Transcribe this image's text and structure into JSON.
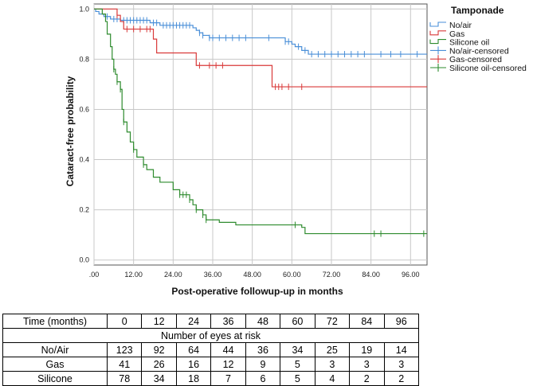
{
  "chart_data": {
    "type": "line",
    "subtype": "kaplan-meier-step",
    "xlabel": "Post-operative followup-up in months",
    "ylabel": "Cataract-free probability",
    "xlim": [
      0,
      101
    ],
    "ylim": [
      -0.02,
      1.02
    ],
    "x_ticks": [
      0,
      12,
      24,
      36,
      48,
      60,
      72,
      84,
      96
    ],
    "x_tick_labels": [
      ".00",
      "12.00",
      "24.00",
      "36.00",
      "48.00",
      "60.00",
      "72.00",
      "84.00",
      "96.00"
    ],
    "y_ticks": [
      0,
      0.2,
      0.4,
      0.6,
      0.8,
      1.0
    ],
    "y_tick_labels": [
      "0.0",
      "0.2",
      "0.4",
      "0.6",
      "0.8",
      "1.0"
    ],
    "grid": true,
    "legend_title": "Tamponade",
    "legend_position": "top-right, outside",
    "legend_entries": [
      "No/air",
      "Gas",
      "Silicone oil",
      "No/air-censored",
      "Gas-censored",
      "Silicone oil-censored"
    ],
    "series": [
      {
        "name": "No/air",
        "color": "#4a8fd8",
        "steps": [
          [
            0,
            1.0
          ],
          [
            0.5,
            0.99
          ],
          [
            1.5,
            0.98
          ],
          [
            3,
            0.97
          ],
          [
            5,
            0.96
          ],
          [
            8,
            0.955
          ],
          [
            17,
            0.945
          ],
          [
            20,
            0.935
          ],
          [
            30,
            0.925
          ],
          [
            31,
            0.915
          ],
          [
            32,
            0.905
          ],
          [
            33,
            0.895
          ],
          [
            35,
            0.885
          ],
          [
            58,
            0.87
          ],
          [
            60,
            0.86
          ],
          [
            61,
            0.85
          ],
          [
            63,
            0.835
          ],
          [
            65,
            0.82
          ],
          [
            101,
            0.82
          ]
        ],
        "censored": [
          4,
          6,
          7,
          9,
          10,
          11,
          12,
          13,
          14,
          15,
          16,
          18,
          19,
          21,
          22,
          23,
          24,
          25,
          26,
          27,
          28,
          29,
          32,
          33,
          35,
          36,
          38,
          40,
          42,
          44,
          46,
          53,
          58,
          59,
          62,
          64,
          66,
          68,
          70,
          72,
          74,
          76,
          78,
          80,
          82,
          87,
          90,
          93,
          98
        ]
      },
      {
        "name": "Gas",
        "color": "#d93a3a",
        "steps": [
          [
            0,
            1.0
          ],
          [
            7,
            0.975
          ],
          [
            8,
            0.95
          ],
          [
            9,
            0.92
          ],
          [
            18,
            0.88
          ],
          [
            19,
            0.825
          ],
          [
            31,
            0.775
          ],
          [
            54,
            0.69
          ],
          [
            101,
            0.69
          ]
        ],
        "censored": [
          7,
          10,
          12,
          14,
          16,
          17,
          32,
          35,
          37,
          39,
          55,
          56,
          57,
          59,
          63
        ]
      },
      {
        "name": "Silicone oil",
        "color": "#2e8b2e",
        "steps": [
          [
            0,
            1.0
          ],
          [
            2.5,
            0.98
          ],
          [
            3.5,
            0.95
          ],
          [
            4,
            0.9
          ],
          [
            5,
            0.85
          ],
          [
            5.5,
            0.8
          ],
          [
            6,
            0.76
          ],
          [
            6.5,
            0.74
          ],
          [
            7,
            0.71
          ],
          [
            8,
            0.68
          ],
          [
            8.5,
            0.6
          ],
          [
            9,
            0.55
          ],
          [
            10,
            0.51
          ],
          [
            11,
            0.47
          ],
          [
            12,
            0.44
          ],
          [
            13,
            0.41
          ],
          [
            15,
            0.38
          ],
          [
            16,
            0.36
          ],
          [
            18,
            0.33
          ],
          [
            20,
            0.31
          ],
          [
            24,
            0.28
          ],
          [
            26,
            0.26
          ],
          [
            29,
            0.24
          ],
          [
            30,
            0.22
          ],
          [
            31,
            0.2
          ],
          [
            33,
            0.18
          ],
          [
            34,
            0.16
          ],
          [
            38,
            0.15
          ],
          [
            43,
            0.14
          ],
          [
            63,
            0.13
          ],
          [
            64,
            0.105
          ],
          [
            101,
            0.105
          ]
        ],
        "censored": [
          6,
          7,
          8,
          9,
          12,
          15,
          26,
          27,
          28,
          29,
          31,
          33,
          34,
          61,
          85,
          87,
          100
        ]
      }
    ]
  },
  "risk_table": {
    "time_header": "Time (months)",
    "times": [
      "0",
      "12",
      "24",
      "36",
      "48",
      "60",
      "72",
      "84",
      "96"
    ],
    "subheader": "Number of eyes at risk",
    "rows": [
      {
        "label": "No/Air",
        "values": [
          "123",
          "92",
          "64",
          "44",
          "36",
          "34",
          "25",
          "19",
          "14"
        ]
      },
      {
        "label": "Gas",
        "values": [
          "41",
          "26",
          "16",
          "12",
          "9",
          "5",
          "3",
          "3",
          "3"
        ]
      },
      {
        "label": "Silicone",
        "values": [
          "78",
          "34",
          "18",
          "7",
          "6",
          "5",
          "4",
          "2",
          "2"
        ]
      }
    ]
  }
}
